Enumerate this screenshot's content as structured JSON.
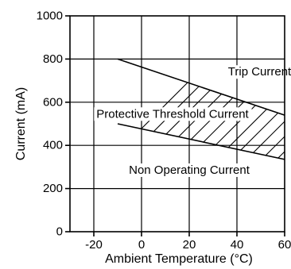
{
  "chart_data": {
    "type": "line",
    "xlabel": "Ambient Temperature (°C)",
    "ylabel": "Current (mA)",
    "xlim": [
      -30,
      60
    ],
    "ylim": [
      0,
      1000
    ],
    "xticks": [
      -20,
      0,
      20,
      40,
      60
    ],
    "yticks": [
      0,
      200,
      400,
      600,
      800,
      1000
    ],
    "grid": true,
    "series": [
      {
        "name": "Trip Current",
        "x": [
          -10,
          60
        ],
        "y": [
          800,
          540
        ]
      },
      {
        "name": "",
        "x": [
          -10,
          60
        ],
        "y": [
          500,
          335
        ]
      }
    ],
    "shaded_region": "between series",
    "annotations": [
      {
        "text": "Trip Current",
        "x": 49.5,
        "y": 740
      },
      {
        "text": "Protective Threshold Current",
        "x": 13,
        "y": 545
      },
      {
        "text": "Non Operating Current",
        "x": 20,
        "y": 285
      }
    ]
  }
}
